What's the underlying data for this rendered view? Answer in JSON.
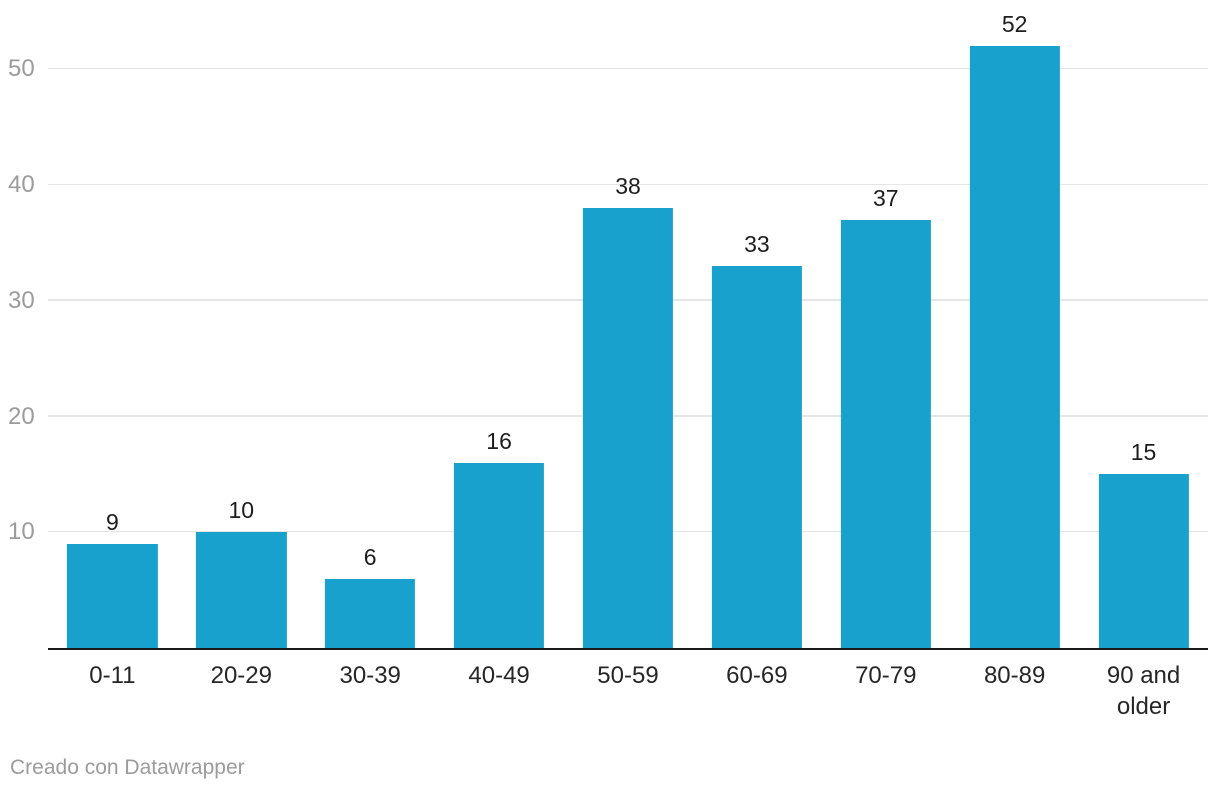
{
  "chart_data": {
    "type": "bar",
    "categories": [
      "0-11",
      "20-29",
      "30-39",
      "40-49",
      "50-59",
      "60-69",
      "70-79",
      "80-89",
      "90 and older"
    ],
    "values": [
      9,
      10,
      6,
      16,
      38,
      33,
      37,
      52,
      15
    ],
    "title": "",
    "xlabel": "",
    "ylabel": "",
    "ylim": [
      0,
      56
    ],
    "yticks": [
      10,
      20,
      30,
      40,
      50
    ],
    "grid": true,
    "legend": "none",
    "value_labels_shown": true,
    "bar_color": "#18a1cd"
  },
  "colors": {
    "bar": "#18a1cd",
    "grid": "#e6e6e6",
    "axis_line": "#1a1a1a",
    "tick_label": "#9b9b9b",
    "value_label": "#1d1d1d",
    "category_label": "#262626",
    "credit_text": "#9b9b9b",
    "background": "#ffffff"
  },
  "footer": {
    "credit": "Creado con Datawrapper"
  }
}
